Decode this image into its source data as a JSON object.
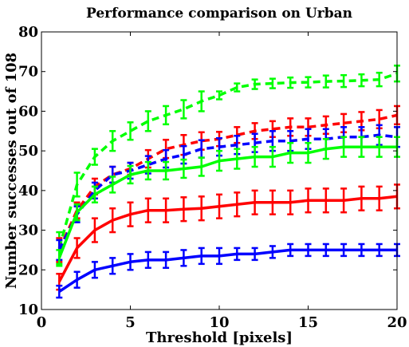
{
  "chart_data": {
    "type": "line",
    "title": "Performance comparison on Urban",
    "xlabel": "Threshold [pixels]",
    "ylabel": "Number successes out of 108",
    "xlim": [
      0,
      20
    ],
    "ylim": [
      10,
      80
    ],
    "xticks": [
      "0",
      "5",
      "10",
      "15",
      "20"
    ],
    "yticks": [
      "10",
      "20",
      "30",
      "40",
      "50",
      "60",
      "70",
      "80"
    ],
    "grid": false,
    "legend": "none",
    "x": [
      1,
      2,
      3,
      4,
      5,
      6,
      7,
      8,
      9,
      10,
      11,
      12,
      13,
      14,
      15,
      16,
      17,
      18,
      19,
      20
    ],
    "series": [
      {
        "color": "#00ff00",
        "style": "dashed",
        "values": [
          25.5,
          41.5,
          48.5,
          52.5,
          55,
          57.5,
          59,
          60.5,
          62.5,
          64,
          66,
          66.8,
          67,
          67.2,
          67.3,
          67.5,
          67.6,
          67.8,
          68,
          69.5
        ],
        "errors": [
          4,
          3,
          2,
          2.5,
          2.2,
          2.5,
          2.3,
          2.3,
          2.5,
          1,
          1,
          1.2,
          1.2,
          1.3,
          1.3,
          1.5,
          1.5,
          1.5,
          1.7,
          2
        ]
      },
      {
        "color": "#ff0000",
        "style": "dashed",
        "values": [
          25,
          35,
          41,
          44,
          45.5,
          48,
          50.5,
          51.5,
          52.5,
          53,
          54,
          55,
          55.5,
          56,
          56,
          56.5,
          57,
          57.5,
          58,
          59
        ],
        "errors": [
          3,
          2,
          2,
          2,
          1.5,
          2.2,
          2.3,
          2.5,
          2.2,
          1.8,
          2,
          2,
          2,
          2.2,
          2.2,
          2.2,
          2.3,
          2.3,
          2.3,
          2.3
        ]
      },
      {
        "color": "#0000ff",
        "style": "dashed",
        "values": [
          25,
          34,
          40,
          44,
          45,
          46.5,
          48,
          49,
          50.5,
          51,
          51.5,
          52,
          52.5,
          52.5,
          53,
          53,
          53.5,
          53.5,
          54,
          53.5
        ],
        "errors": [
          2.5,
          2,
          2,
          2,
          2,
          2.2,
          2.2,
          2.2,
          2.2,
          2.2,
          2.3,
          2.3,
          2.5,
          2.5,
          2.5,
          2.5,
          2.5,
          2.5,
          2.5,
          2.5
        ]
      },
      {
        "color": "#00ff00",
        "style": "solid",
        "values": [
          23,
          34.5,
          39,
          41.5,
          44,
          45,
          45,
          45.5,
          46,
          47.5,
          48,
          48.5,
          48.5,
          49.5,
          49.5,
          50.5,
          51,
          51,
          51,
          51
        ],
        "errors": [
          2,
          2,
          2,
          2,
          2.2,
          2.2,
          2.2,
          2.3,
          2.3,
          2.5,
          2.5,
          2.5,
          2.5,
          2.5,
          2.5,
          2.5,
          2.5,
          2.5,
          2.5,
          2.5
        ]
      },
      {
        "color": "#ff0000",
        "style": "solid",
        "values": [
          17,
          25.5,
          30,
          32.5,
          34,
          35,
          35,
          35.3,
          35.5,
          36,
          36.5,
          37,
          37,
          37,
          37.5,
          37.5,
          37.5,
          38,
          38,
          38.5
        ],
        "errors": [
          2,
          2.5,
          3,
          3,
          3,
          3,
          3,
          3,
          3,
          3,
          3,
          3,
          3,
          3,
          3,
          3,
          3,
          3,
          3,
          3
        ]
      },
      {
        "color": "#0000ff",
        "style": "solid",
        "values": [
          14.5,
          17.5,
          20,
          21,
          22,
          22.5,
          22.5,
          23,
          23.5,
          23.5,
          24,
          24,
          24.5,
          25,
          25,
          25,
          25,
          25,
          25,
          25
        ],
        "errors": [
          1.5,
          2,
          2,
          2,
          2,
          2,
          2,
          2,
          2,
          2,
          1.5,
          1.5,
          1.5,
          1.5,
          1.5,
          1.5,
          1.5,
          1.5,
          1.5,
          1.5
        ]
      }
    ]
  }
}
